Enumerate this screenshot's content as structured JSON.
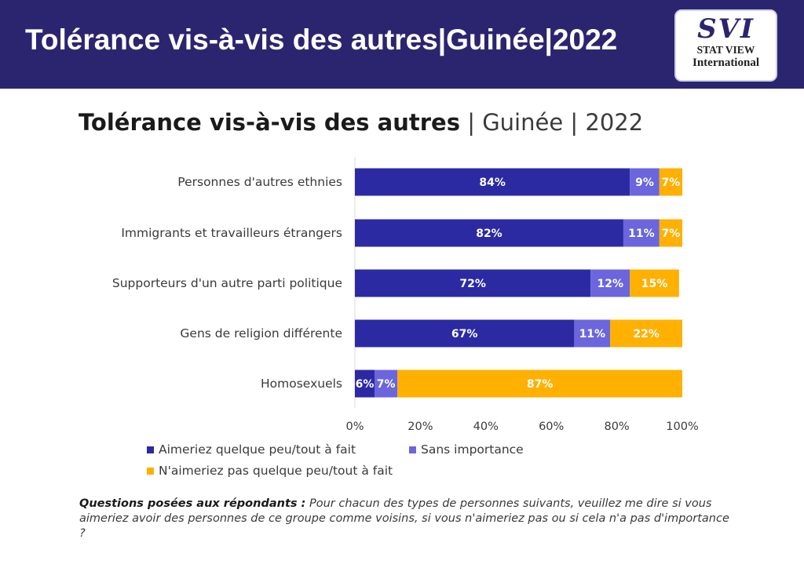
{
  "banner": {
    "title": "Tolérance vis-à-vis des autres|Guinée|2022",
    "logo": {
      "line1": "SVI",
      "line2": "STAT VIEW",
      "line3": "International"
    }
  },
  "chart_title": {
    "main": "Tolérance vis-à-vis des autres",
    "rest": " | Guinée | 2022"
  },
  "colors": {
    "banner": "#2b2570",
    "aimeriez": "#2b2aa3",
    "sans_importance": "#6b66dd",
    "naimeriez_pas": "#ffb000"
  },
  "chart_data": {
    "type": "bar",
    "orientation": "horizontal",
    "stacked": true,
    "categories": [
      "Personnes d'autres ethnies",
      "Immigrants et travailleurs étrangers",
      "Supporteurs d'un autre parti politique",
      "Gens de religion différente",
      "Homosexuels"
    ],
    "series": [
      {
        "name": "Aimeriez quelque peu/tout à fait",
        "values": [
          84,
          82,
          72,
          67,
          6
        ],
        "labels": [
          "84%",
          "82%",
          "72%",
          "67%",
          "6%"
        ]
      },
      {
        "name": "Sans importance",
        "values": [
          9,
          11,
          12,
          11,
          7
        ],
        "labels": [
          "9%",
          "11%",
          "12%",
          "11%",
          "7%"
        ]
      },
      {
        "name": "N'aimeriez pas quelque peu/tout à fait",
        "values": [
          7,
          7,
          15,
          22,
          87
        ],
        "labels": [
          "7%",
          "7%",
          "15%",
          "22%",
          "87%"
        ]
      }
    ],
    "xlim": [
      0,
      100
    ],
    "xticks": [
      "0%",
      "20%",
      "40%",
      "60%",
      "80%",
      "100%"
    ],
    "legend_position": "bottom",
    "grid": false
  },
  "legend": {
    "aimeriez": "Aimeriez quelque peu/tout à fait",
    "sans_importance": "Sans importance",
    "naimeriez_pas": "N'aimeriez pas quelque peu/tout à fait"
  },
  "question": {
    "label": "Questions posées aux répondants :",
    "text": " Pour chacun des types de personnes suivants, veuillez me dire si vous aimeriez avoir des personnes de ce groupe comme voisins, si vous n'aimeriez pas ou si cela n'a pas d'importance ?"
  }
}
